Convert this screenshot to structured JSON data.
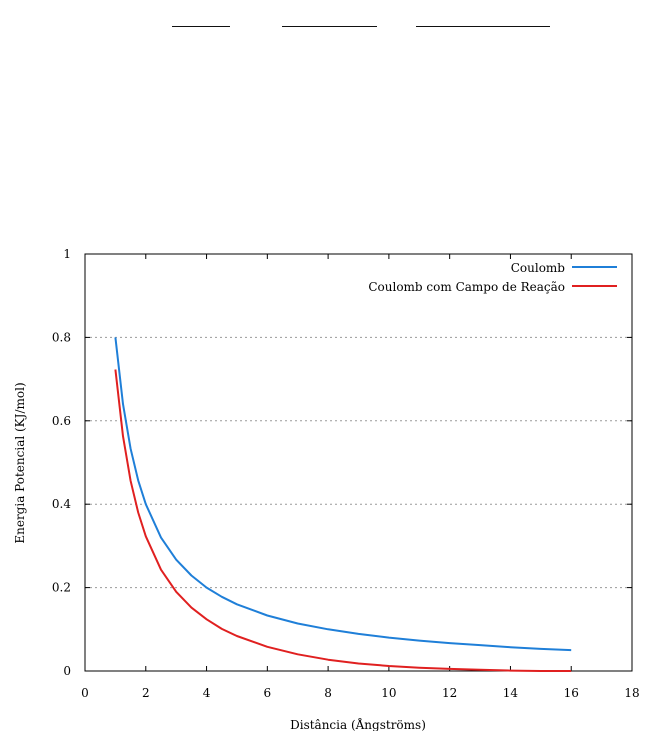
{
  "chart_data": {
    "type": "line",
    "xlabel": "Distância (Ångströms)",
    "ylabel": "Energia Potencial (KJ/mol)",
    "xlim": [
      0,
      18
    ],
    "ylim": [
      0,
      1
    ],
    "x_ticks": [
      0,
      2,
      4,
      6,
      8,
      10,
      12,
      14,
      16,
      18
    ],
    "y_ticks": [
      0,
      0.2,
      0.4,
      0.6,
      0.8,
      1
    ],
    "y_tick_labels": [
      "0",
      "0.2",
      "0.4",
      "0.6",
      "0.8",
      "1"
    ],
    "grid": "horizontal dotted",
    "legend_position": "top-right",
    "series": [
      {
        "name": "Coulomb",
        "color": "#1f7fd8",
        "x": [
          1.0,
          1.25,
          1.5,
          1.75,
          2.0,
          2.5,
          3.0,
          3.5,
          4.0,
          4.5,
          5.0,
          6.0,
          7.0,
          8.0,
          9.0,
          10.0,
          11.0,
          12.0,
          13.0,
          14.0,
          15.0,
          16.0
        ],
        "y": [
          0.8,
          0.64,
          0.533,
          0.457,
          0.4,
          0.32,
          0.267,
          0.229,
          0.2,
          0.178,
          0.16,
          0.133,
          0.114,
          0.1,
          0.089,
          0.08,
          0.073,
          0.067,
          0.062,
          0.057,
          0.053,
          0.05
        ]
      },
      {
        "name": "Coulomb com Campo de Reação",
        "color": "#e02020",
        "x": [
          1.0,
          1.25,
          1.5,
          1.75,
          2.0,
          2.5,
          3.0,
          3.5,
          4.0,
          4.5,
          5.0,
          6.0,
          7.0,
          8.0,
          9.0,
          10.0,
          11.0,
          12.0,
          13.0,
          14.0,
          15.0,
          16.0
        ],
        "y": [
          0.723,
          0.563,
          0.456,
          0.38,
          0.323,
          0.243,
          0.19,
          0.152,
          0.124,
          0.101,
          0.084,
          0.058,
          0.04,
          0.027,
          0.018,
          0.012,
          0.008,
          0.005,
          0.003,
          0.001,
          0.0,
          0.0
        ]
      }
    ]
  }
}
